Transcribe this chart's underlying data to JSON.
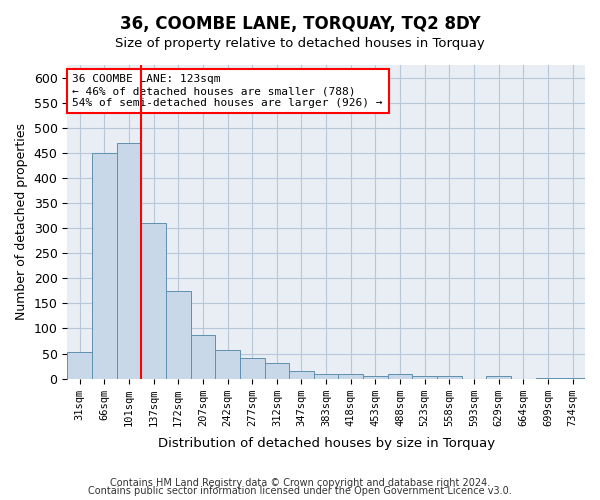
{
  "title": "36, COOMBE LANE, TORQUAY, TQ2 8DY",
  "subtitle": "Size of property relative to detached houses in Torquay",
  "xlabel": "Distribution of detached houses by size in Torquay",
  "ylabel": "Number of detached properties",
  "footnote1": "Contains HM Land Registry data © Crown copyright and database right 2024.",
  "footnote2": "Contains public sector information licensed under the Open Government Licence v3.0.",
  "bar_labels": [
    "31sqm",
    "66sqm",
    "101sqm",
    "137sqm",
    "172sqm",
    "207sqm",
    "242sqm",
    "277sqm",
    "312sqm",
    "347sqm",
    "383sqm",
    "418sqm",
    "453sqm",
    "488sqm",
    "523sqm",
    "558sqm",
    "593sqm",
    "629sqm",
    "664sqm",
    "699sqm",
    "734sqm"
  ],
  "bar_values": [
    53,
    450,
    470,
    310,
    175,
    87,
    57,
    42,
    31,
    15,
    9,
    9,
    5,
    9,
    5,
    5,
    0,
    5,
    0,
    2,
    2
  ],
  "bar_color": "#c8d8e8",
  "bar_edge_color": "#6090b0",
  "red_line_x": 2.5,
  "annotation_text": "36 COOMBE LANE: 123sqm\n← 46% of detached houses are smaller (788)\n54% of semi-detached houses are larger (926) →",
  "annotation_box_color": "white",
  "annotation_box_edge": "red",
  "ylim": [
    0,
    625
  ],
  "yticks": [
    0,
    50,
    100,
    150,
    200,
    250,
    300,
    350,
    400,
    450,
    500,
    550,
    600
  ],
  "background_color": "#e8eef4",
  "grid_color": "#b8c8d8"
}
